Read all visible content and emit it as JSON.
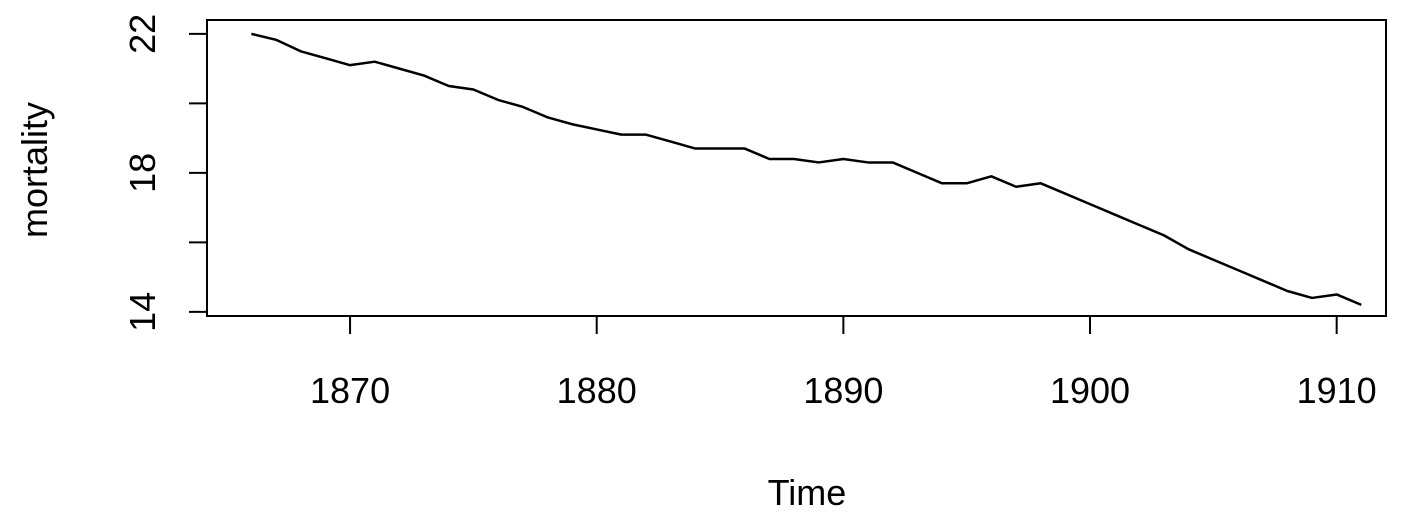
{
  "chart_data": {
    "type": "line",
    "x_label": "Time",
    "y_label": "mortality",
    "x": [
      1866,
      1867,
      1868,
      1869,
      1870,
      1871,
      1872,
      1873,
      1874,
      1875,
      1876,
      1877,
      1878,
      1879,
      1880,
      1881,
      1882,
      1883,
      1884,
      1885,
      1886,
      1887,
      1888,
      1889,
      1890,
      1891,
      1892,
      1893,
      1894,
      1895,
      1896,
      1897,
      1898,
      1899,
      1900,
      1901,
      1902,
      1903,
      1904,
      1905,
      1906,
      1907,
      1908,
      1909,
      1910,
      1911
    ],
    "series": [
      {
        "color": "#000000",
        "values": [
          22.0,
          21.83,
          21.5,
          21.3,
          21.1,
          21.2,
          21.0,
          20.8,
          20.5,
          20.4,
          20.1,
          19.9,
          19.6,
          19.4,
          19.25,
          19.1,
          19.1,
          18.9,
          18.7,
          18.7,
          18.7,
          18.4,
          18.4,
          18.3,
          18.4,
          18.3,
          18.3,
          18.0,
          17.7,
          17.7,
          17.9,
          17.6,
          17.7,
          17.4,
          17.1,
          16.8,
          16.5,
          16.2,
          15.8,
          15.5,
          15.2,
          14.9,
          14.6,
          14.4,
          14.5,
          14.2
        ]
      }
    ],
    "xlim": [
      1864.2,
      1912.0
    ],
    "ylim": [
      13.88,
      22.4
    ],
    "xticks": [
      1870,
      1880,
      1890,
      1900,
      1910
    ],
    "yticks": [
      14,
      18,
      22
    ],
    "yticks_unlabeled": [
      16,
      20
    ]
  }
}
